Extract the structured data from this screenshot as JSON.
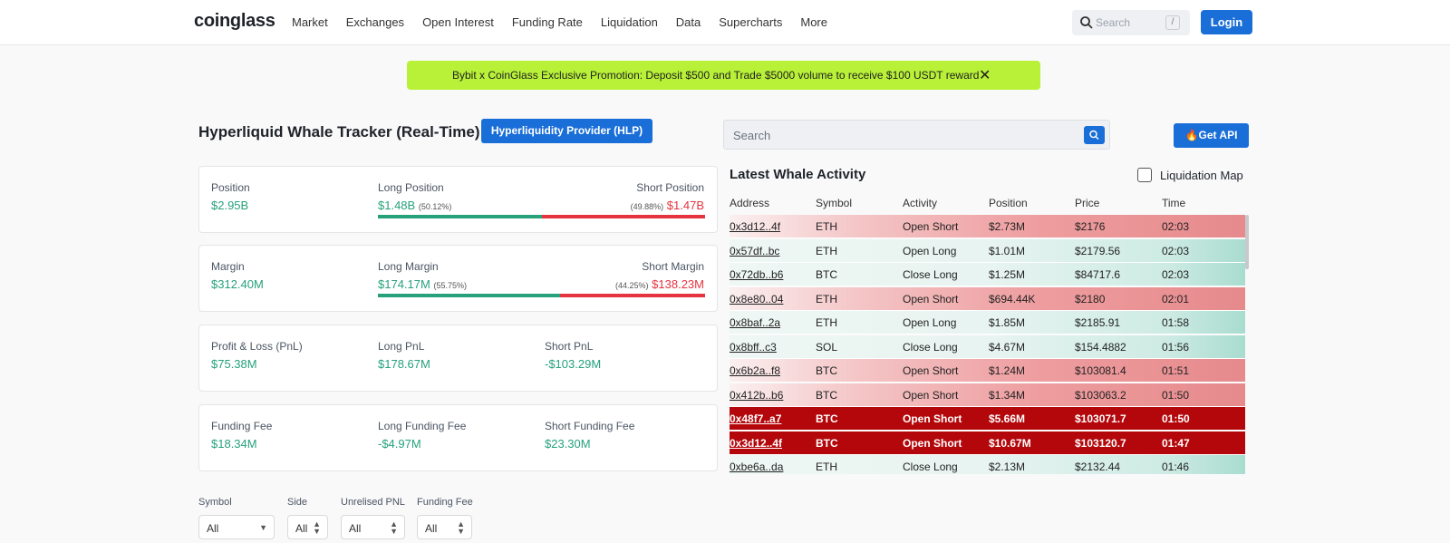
{
  "nav": {
    "logo": "coinglass",
    "items": [
      "Market",
      "Exchanges",
      "Open Interest",
      "Funding Rate",
      "Liquidation",
      "Data",
      "Supercharts",
      "More"
    ],
    "search_placeholder": "Search",
    "search_shortcut": "/",
    "login_label": "Login"
  },
  "promo": {
    "text": "Bybit x CoinGlass Exclusive Promotion: Deposit $500 and Trade $5000 volume to receive $100 USDT reward",
    "close": "✕"
  },
  "page": {
    "title": "Hyperliquid Whale Tracker (Real-Time)",
    "hlp_button": "Hyperliquidity Provider (HLP)"
  },
  "cards": {
    "position": {
      "label": "Position",
      "value": "$2.95B",
      "long_label": "Long Position",
      "long_value": "$1.48B",
      "long_pct": "(50.12%)",
      "short_label": "Short Position",
      "short_value": "$1.47B",
      "short_pct": "(49.88%)",
      "long_fraction": 0.5012
    },
    "margin": {
      "label": "Margin",
      "value": "$312.40M",
      "long_label": "Long Margin",
      "long_value": "$174.17M",
      "long_pct": "(55.75%)",
      "short_label": "Short Margin",
      "short_value": "$138.23M",
      "short_pct": "(44.25%)",
      "long_fraction": 0.5575
    },
    "pnl": {
      "label": "Profit & Loss (PnL)",
      "value": "$75.38M",
      "long_label": "Long PnL",
      "long_value": "$178.67M",
      "short_label": "Short PnL",
      "short_value": "-$103.29M"
    },
    "funding": {
      "label": "Funding Fee",
      "value": "$18.34M",
      "long_label": "Long Funding Fee",
      "long_value": "-$4.97M",
      "short_label": "Short Funding Fee",
      "short_value": "$23.30M"
    }
  },
  "filters": {
    "symbol_label": "Symbol",
    "symbol_value": "All",
    "side_label": "Side",
    "side_value": "All",
    "upnl_label": "Unrelised PNL",
    "upnl_value": "All",
    "fee_label": "Funding Fee",
    "fee_value": "All"
  },
  "right": {
    "search_placeholder": "Search",
    "api_button": "🔥Get API",
    "whale_title": "Latest Whale Activity",
    "liq_map_label": "Liquidation Map"
  },
  "table": {
    "headers": [
      "Address",
      "Symbol",
      "Activity",
      "Position",
      "Price",
      "Time"
    ],
    "rows": [
      {
        "address": "0x3d12..4f",
        "symbol": "ETH",
        "activity": "Open Short",
        "position": "$2.73M",
        "price": "$2176",
        "time": "02:03",
        "kind": "short"
      },
      {
        "address": "0x57df..bc",
        "symbol": "ETH",
        "activity": "Open Long",
        "position": "$1.01M",
        "price": "$2179.56",
        "time": "02:03",
        "kind": "long"
      },
      {
        "address": "0x72db..b6",
        "symbol": "BTC",
        "activity": "Close Long",
        "position": "$1.25M",
        "price": "$84717.6",
        "time": "02:03",
        "kind": "long"
      },
      {
        "address": "0x8e80..04",
        "symbol": "ETH",
        "activity": "Open Short",
        "position": "$694.44K",
        "price": "$2180",
        "time": "02:01",
        "kind": "short"
      },
      {
        "address": "0x8baf..2a",
        "symbol": "ETH",
        "activity": "Open Long",
        "position": "$1.85M",
        "price": "$2185.91",
        "time": "01:58",
        "kind": "long"
      },
      {
        "address": "0x8bff..c3",
        "symbol": "SOL",
        "activity": "Close Long",
        "position": "$4.67M",
        "price": "$154.4882",
        "time": "01:56",
        "kind": "long"
      },
      {
        "address": "0x6b2a..f8",
        "symbol": "BTC",
        "activity": "Open Short",
        "position": "$1.24M",
        "price": "$103081.4",
        "time": "01:51",
        "kind": "short"
      },
      {
        "address": "0x412b..b6",
        "symbol": "BTC",
        "activity": "Open Short",
        "position": "$1.34M",
        "price": "$103063.2",
        "time": "01:50",
        "kind": "short"
      },
      {
        "address": "0x48f7..a7",
        "symbol": "BTC",
        "activity": "Open Short",
        "position": "$5.66M",
        "price": "$103071.7",
        "time": "01:50",
        "kind": "big"
      },
      {
        "address": "0x3d12..4f",
        "symbol": "BTC",
        "activity": "Open Short",
        "position": "$10.67M",
        "price": "$103120.7",
        "time": "01:47",
        "kind": "big"
      },
      {
        "address": "0xbe6a..da",
        "symbol": "ETH",
        "activity": "Close Long",
        "position": "$2.13M",
        "price": "$2132.44",
        "time": "01:46",
        "kind": "long"
      }
    ]
  }
}
